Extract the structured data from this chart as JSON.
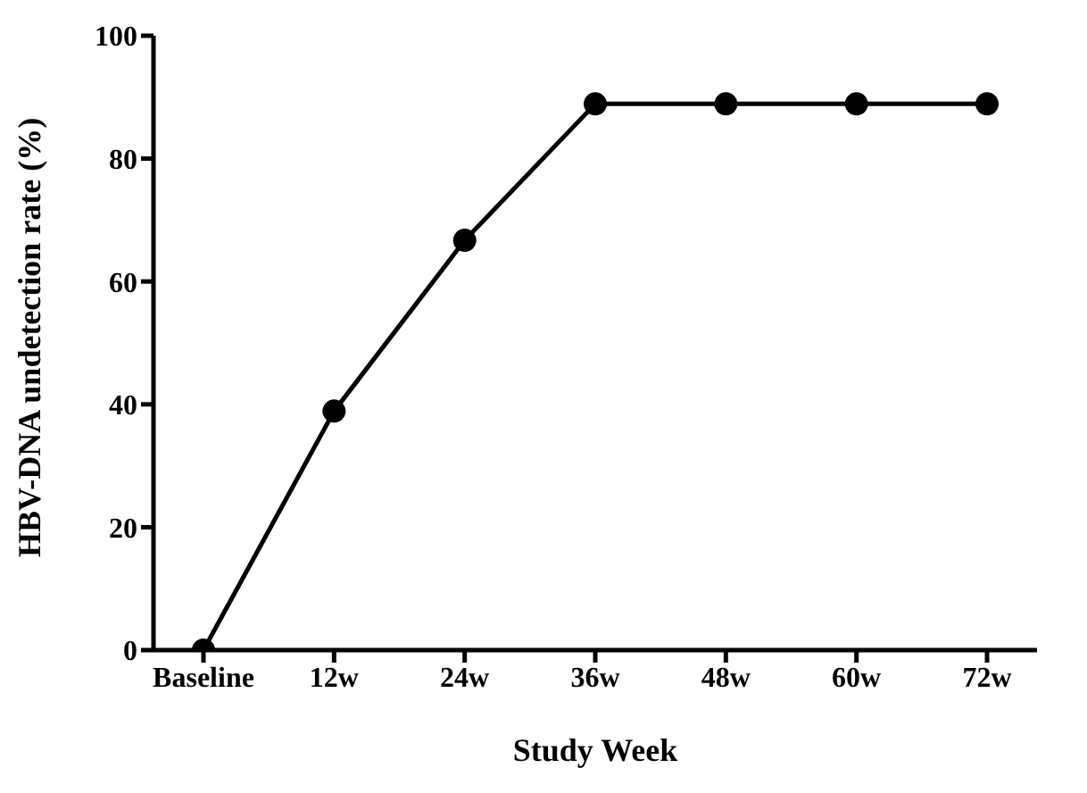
{
  "chart_data": {
    "type": "line",
    "xlabel": "Study Week",
    "ylabel": "HBV-DNA undetection rate (%)",
    "categories": [
      "Baseline",
      "12w",
      "24w",
      "36w",
      "48w",
      "60w",
      "72w"
    ],
    "series": [
      {
        "color": "#000000",
        "values": [
          0,
          38.9,
          66.7,
          88.9,
          88.9,
          88.9,
          88.9
        ]
      }
    ],
    "ylim": [
      0,
      100
    ],
    "yticks": [
      0,
      20,
      40,
      60,
      80,
      100
    ],
    "grid": false,
    "legend": false,
    "marker": "circle",
    "line_style": "solid"
  }
}
